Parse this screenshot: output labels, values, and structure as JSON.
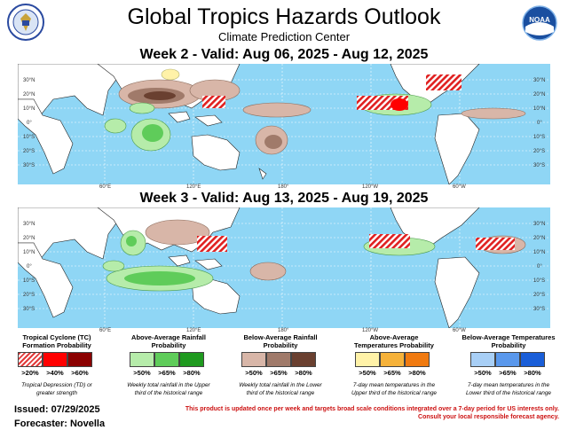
{
  "header": {
    "title": "Global Tropics Hazards Outlook",
    "subtitle": "Climate Prediction Center",
    "left_logo": "us-department-of-commerce-seal",
    "right_logo": "noaa-logo",
    "noaa_text": "NOAA"
  },
  "week2": {
    "label": "Week 2 - Valid: Aug 06, 2025 - Aug 12, 2025"
  },
  "week3": {
    "label": "Week 3 - Valid: Aug 13, 2025 - Aug 19, 2025"
  },
  "map_axes": {
    "lat_left": [
      "30°N",
      "20°N",
      "10°N",
      "0°",
      "10°S",
      "20°S",
      "30°S"
    ],
    "lat_right": [
      "30°N",
      "20°N",
      "10°N",
      "0°",
      "10°S",
      "20°S",
      "30°S"
    ],
    "lon_bottom": [
      "60°E",
      "120°E",
      "180°",
      "120°W",
      "60°W"
    ]
  },
  "colors": {
    "ocean": "#8fd6f5",
    "land": "#ffffff",
    "tc_hatch": "#e02020",
    "rain_above": "#3aa83a",
    "rain_below": "#8a6a5a",
    "temp_above": "#f0c040",
    "temp_below": "#3f7fe0"
  },
  "legend": {
    "tc": {
      "title": "Tropical Cyclone (TC) Formation Probability",
      "labels": [
        ">20%",
        ">40%",
        ">60%"
      ],
      "note": "Tropical Depression (TD) or greater strength",
      "colors": [
        "#e23a3a",
        "#ff0000",
        "#8b0000"
      ]
    },
    "rain_above": {
      "title": "Above-Average Rainfall Probability",
      "labels": [
        ">50%",
        ">65%",
        ">80%"
      ],
      "note": "Weekly total rainfall in the Upper third of the historical range",
      "colors": [
        "#b6ecaa",
        "#5fcc5a",
        "#1f9a1f"
      ]
    },
    "rain_below": {
      "title": "Below-Average Rainfall Probability",
      "labels": [
        ">50%",
        ">65%",
        ">80%"
      ],
      "note": "Weekly total rainfall in the Lower third of the historical range",
      "colors": [
        "#d8b6a8",
        "#a07a6a",
        "#6a4030"
      ]
    },
    "temp_above": {
      "title": "Above-Average Temperatures Probability",
      "labels": [
        ">50%",
        ">65%",
        ">80%"
      ],
      "note": "7-day mean temperatures in the Upper third of the historical range",
      "colors": [
        "#fff2a8",
        "#f6b23a",
        "#f07a10"
      ]
    },
    "temp_below": {
      "title": "Below-Average Temperatures Probability",
      "labels": [
        ">50%",
        ">65%",
        ">80%"
      ],
      "note": "7-day mean temperatures in the Lower third of the historical range",
      "colors": [
        "#a8cff6",
        "#5a98ec",
        "#1a5ed8"
      ]
    }
  },
  "footer": {
    "issued": "Issued: 07/29/2025",
    "forecaster": "Forecaster: Novella",
    "disclaimer1": "This product is updated once per week and targets broad scale conditions integrated over a 7-day period for US interests only.",
    "disclaimer2": "Consult your local responsible forecast agency."
  }
}
